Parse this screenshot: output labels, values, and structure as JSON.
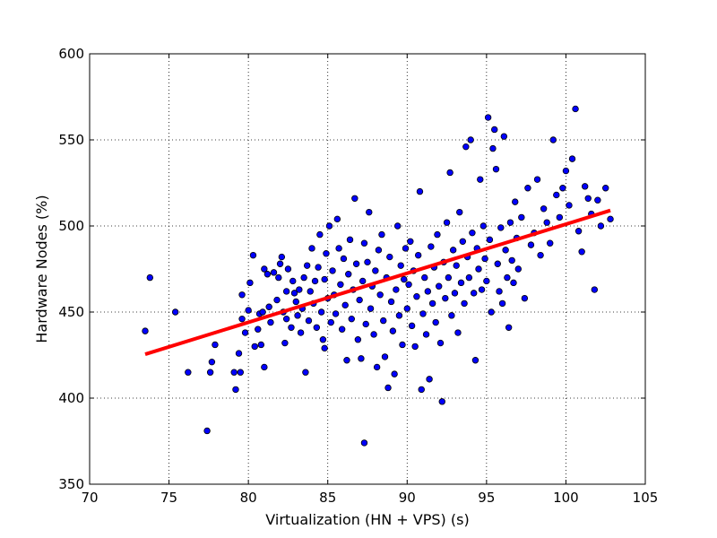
{
  "chart_data": {
    "type": "scatter",
    "title": "",
    "xlabel": "Virtualization (HN + VPS) (s)",
    "ylabel": "Hardware Nodes (%)",
    "xlim": [
      70,
      105
    ],
    "ylim": [
      350,
      600
    ],
    "xticks": [
      70,
      75,
      80,
      85,
      90,
      95,
      100,
      105
    ],
    "yticks": [
      350,
      400,
      450,
      500,
      550,
      600
    ],
    "grid": "dotted",
    "colors": {
      "points": "#0000ff",
      "point_edge": "#000000",
      "fit_line": "#ff0000"
    },
    "series": [
      {
        "type": "scatter",
        "points": [
          [
            73.5,
            439
          ],
          [
            73.8,
            470
          ],
          [
            75.4,
            450
          ],
          [
            76.2,
            415
          ],
          [
            77.4,
            381
          ],
          [
            77.6,
            415
          ],
          [
            77.7,
            421
          ],
          [
            77.9,
            431
          ],
          [
            79.1,
            415
          ],
          [
            79.2,
            405
          ],
          [
            79.4,
            426
          ],
          [
            79.5,
            415
          ],
          [
            79.6,
            446
          ],
          [
            79.6,
            460
          ],
          [
            79.8,
            438
          ],
          [
            80.0,
            451
          ],
          [
            80.1,
            467
          ],
          [
            80.3,
            483
          ],
          [
            80.4,
            430
          ],
          [
            80.6,
            440
          ],
          [
            80.7,
            449
          ],
          [
            80.8,
            431
          ],
          [
            80.9,
            450
          ],
          [
            81.0,
            418
          ],
          [
            81.0,
            475
          ],
          [
            81.2,
            472
          ],
          [
            81.3,
            453
          ],
          [
            81.4,
            444
          ],
          [
            81.6,
            473
          ],
          [
            81.8,
            457
          ],
          [
            81.9,
            470
          ],
          [
            82.0,
            478
          ],
          [
            82.1,
            482
          ],
          [
            82.2,
            450
          ],
          [
            82.3,
            432
          ],
          [
            82.4,
            462
          ],
          [
            82.4,
            446
          ],
          [
            82.5,
            475
          ],
          [
            82.7,
            441
          ],
          [
            82.8,
            468
          ],
          [
            82.9,
            461
          ],
          [
            83.0,
            456
          ],
          [
            83.1,
            448
          ],
          [
            83.2,
            463
          ],
          [
            83.3,
            438
          ],
          [
            83.4,
            452
          ],
          [
            83.5,
            470
          ],
          [
            83.6,
            415
          ],
          [
            83.7,
            477
          ],
          [
            83.8,
            445
          ],
          [
            83.9,
            462
          ],
          [
            84.0,
            487
          ],
          [
            84.1,
            455
          ],
          [
            84.2,
            468
          ],
          [
            84.3,
            441
          ],
          [
            84.4,
            476
          ],
          [
            84.5,
            495
          ],
          [
            84.6,
            450
          ],
          [
            84.7,
            434
          ],
          [
            84.8,
            429
          ],
          [
            84.8,
            469
          ],
          [
            84.9,
            484
          ],
          [
            85.0,
            458
          ],
          [
            85.1,
            500
          ],
          [
            85.2,
            444
          ],
          [
            85.3,
            474
          ],
          [
            85.4,
            460
          ],
          [
            85.5,
            449
          ],
          [
            85.6,
            504
          ],
          [
            85.7,
            487
          ],
          [
            85.8,
            466
          ],
          [
            85.9,
            440
          ],
          [
            86.0,
            481
          ],
          [
            86.1,
            454
          ],
          [
            86.2,
            422
          ],
          [
            86.3,
            472
          ],
          [
            86.4,
            492
          ],
          [
            86.5,
            446
          ],
          [
            86.6,
            463
          ],
          [
            86.7,
            516
          ],
          [
            86.8,
            478
          ],
          [
            86.9,
            434
          ],
          [
            87.0,
            457
          ],
          [
            87.1,
            423
          ],
          [
            87.2,
            468
          ],
          [
            87.3,
            374
          ],
          [
            87.3,
            490
          ],
          [
            87.4,
            443
          ],
          [
            87.5,
            479
          ],
          [
            87.6,
            508
          ],
          [
            87.7,
            452
          ],
          [
            87.8,
            465
          ],
          [
            87.9,
            437
          ],
          [
            88.0,
            474
          ],
          [
            88.1,
            418
          ],
          [
            88.2,
            486
          ],
          [
            88.3,
            460
          ],
          [
            88.4,
            495
          ],
          [
            88.5,
            445
          ],
          [
            88.6,
            424
          ],
          [
            88.7,
            470
          ],
          [
            88.8,
            406
          ],
          [
            88.9,
            482
          ],
          [
            89.0,
            456
          ],
          [
            89.1,
            439
          ],
          [
            89.2,
            414
          ],
          [
            89.3,
            463
          ],
          [
            89.4,
            500
          ],
          [
            89.5,
            448
          ],
          [
            89.6,
            477
          ],
          [
            89.7,
            431
          ],
          [
            89.8,
            469
          ],
          [
            89.9,
            487
          ],
          [
            90.0,
            452
          ],
          [
            90.1,
            466
          ],
          [
            90.2,
            491
          ],
          [
            90.3,
            442
          ],
          [
            90.4,
            474
          ],
          [
            90.5,
            430
          ],
          [
            90.6,
            459
          ],
          [
            90.7,
            483
          ],
          [
            90.8,
            520
          ],
          [
            90.9,
            405
          ],
          [
            91.0,
            449
          ],
          [
            91.1,
            470
          ],
          [
            91.2,
            437
          ],
          [
            91.3,
            462
          ],
          [
            91.4,
            411
          ],
          [
            91.5,
            488
          ],
          [
            91.6,
            455
          ],
          [
            91.7,
            476
          ],
          [
            91.8,
            444
          ],
          [
            91.9,
            495
          ],
          [
            92.0,
            465
          ],
          [
            92.1,
            432
          ],
          [
            92.2,
            398
          ],
          [
            92.3,
            479
          ],
          [
            92.4,
            458
          ],
          [
            92.5,
            502
          ],
          [
            92.6,
            470
          ],
          [
            92.7,
            531
          ],
          [
            92.8,
            448
          ],
          [
            92.9,
            486
          ],
          [
            93.0,
            461
          ],
          [
            93.1,
            477
          ],
          [
            93.2,
            438
          ],
          [
            93.3,
            508
          ],
          [
            93.4,
            467
          ],
          [
            93.5,
            491
          ],
          [
            93.6,
            455
          ],
          [
            93.7,
            546
          ],
          [
            93.8,
            482
          ],
          [
            93.9,
            470
          ],
          [
            94.0,
            550
          ],
          [
            94.1,
            496
          ],
          [
            94.2,
            461
          ],
          [
            94.3,
            422
          ],
          [
            94.4,
            487
          ],
          [
            94.5,
            475
          ],
          [
            94.6,
            527
          ],
          [
            94.7,
            463
          ],
          [
            94.8,
            500
          ],
          [
            94.9,
            481
          ],
          [
            95.0,
            468
          ],
          [
            95.1,
            563
          ],
          [
            95.2,
            492
          ],
          [
            95.3,
            450
          ],
          [
            95.4,
            545
          ],
          [
            95.5,
            556
          ],
          [
            95.6,
            533
          ],
          [
            95.7,
            478
          ],
          [
            95.8,
            462
          ],
          [
            95.9,
            499
          ],
          [
            96.0,
            455
          ],
          [
            96.1,
            552
          ],
          [
            96.2,
            486
          ],
          [
            96.3,
            470
          ],
          [
            96.4,
            441
          ],
          [
            96.5,
            502
          ],
          [
            96.6,
            480
          ],
          [
            96.7,
            467
          ],
          [
            96.8,
            514
          ],
          [
            96.9,
            493
          ],
          [
            97.0,
            475
          ],
          [
            97.2,
            505
          ],
          [
            97.4,
            458
          ],
          [
            97.6,
            522
          ],
          [
            97.8,
            489
          ],
          [
            98.0,
            496
          ],
          [
            98.2,
            527
          ],
          [
            98.4,
            483
          ],
          [
            98.6,
            510
          ],
          [
            98.8,
            502
          ],
          [
            99.0,
            490
          ],
          [
            99.2,
            550
          ],
          [
            99.4,
            518
          ],
          [
            99.6,
            505
          ],
          [
            99.8,
            522
          ],
          [
            100.0,
            532
          ],
          [
            100.2,
            512
          ],
          [
            100.4,
            539
          ],
          [
            100.6,
            568
          ],
          [
            100.8,
            497
          ],
          [
            101.0,
            485
          ],
          [
            101.2,
            523
          ],
          [
            101.4,
            516
          ],
          [
            101.6,
            507
          ],
          [
            101.8,
            463
          ],
          [
            102.0,
            515
          ],
          [
            102.2,
            500
          ],
          [
            102.5,
            522
          ],
          [
            102.8,
            504
          ]
        ]
      },
      {
        "type": "line",
        "x": [
          73.5,
          102.8
        ],
        "y": [
          425.5,
          509
        ]
      }
    ]
  }
}
